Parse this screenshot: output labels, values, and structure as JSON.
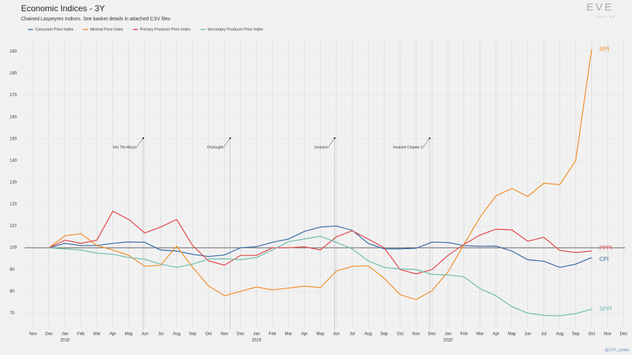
{
  "chart_data": {
    "type": "line",
    "title": "Economic Indices - 3Y",
    "subtitle": "Chained Laspeyres Indices. See basket details in attached CSV files",
    "brand": "EVE",
    "brand_sub": "ONLINE",
    "credit": "@CCP_Larrikin",
    "categories": [
      "Nov",
      "Dec",
      "Jan",
      "Feb",
      "Mar",
      "Apr",
      "May",
      "Jun",
      "Jul",
      "Aug",
      "Sep",
      "Oct",
      "Nov",
      "Dec",
      "Jan",
      "Feb",
      "Mar",
      "Apr",
      "May",
      "Jun",
      "Jul",
      "Aug",
      "Sep",
      "Oct",
      "Nov",
      "Dec",
      "Jan",
      "Feb",
      "Mar",
      "Apr",
      "May",
      "Jun",
      "Jul",
      "Aug",
      "Sep",
      "Oct",
      "Nov",
      "Dec"
    ],
    "year_labels": [
      {
        "index": 2,
        "label": "2018"
      },
      {
        "index": 14,
        "label": "2019"
      },
      {
        "index": 26,
        "label": "2020"
      }
    ],
    "ylim": [
      64,
      195
    ],
    "yticks": [
      70,
      80,
      90,
      100,
      110,
      120,
      130,
      140,
      150,
      160,
      170,
      180,
      190
    ],
    "grid": true,
    "reference_line": 100,
    "legend": "top-left",
    "series": [
      {
        "name": "Consumer Price Index",
        "label": "CPI",
        "color": "#3d6fa6",
        "values": [
          null,
          100,
          102,
          101,
          101,
          102,
          102.7,
          102.5,
          99,
          98.5,
          97,
          96,
          96.7,
          100,
          100.5,
          102.5,
          104,
          107.5,
          109.5,
          110,
          108,
          102,
          99.5,
          99.5,
          99.8,
          102.6,
          102.4,
          101,
          100.7,
          100.8,
          98.5,
          94.5,
          93.8,
          91,
          92.5,
          95.5,
          null,
          null
        ]
      },
      {
        "name": "Mineral Price Index",
        "label": "MPI",
        "color": "#f0922f",
        "values": [
          null,
          100,
          105.5,
          106.5,
          101,
          99,
          96.5,
          91.5,
          92,
          100.8,
          91,
          82.5,
          78,
          80,
          82,
          80.7,
          81.5,
          82.4,
          81.7,
          89.3,
          91.5,
          91.7,
          86,
          78.5,
          76.2,
          80.3,
          89,
          101.5,
          114,
          123.8,
          127.2,
          123.5,
          129.6,
          129,
          140,
          191,
          null,
          null
        ]
      },
      {
        "name": "Primary Producer Price Index",
        "label": "PPPI",
        "color": "#e14a4e",
        "values": [
          null,
          100,
          103.5,
          102,
          103.5,
          116.8,
          113,
          106.8,
          109.5,
          113,
          101,
          94,
          92,
          96.5,
          96.5,
          100,
          100,
          100.5,
          99,
          105,
          107.8,
          104,
          100,
          90,
          88,
          90,
          96.5,
          101.5,
          105.8,
          108.5,
          108.2,
          103,
          104.8,
          98.8,
          97.8,
          98.5,
          null,
          null
        ]
      },
      {
        "name": "Secondary Producer Price Index",
        "label": "SPPI",
        "color": "#72bdb1",
        "values": [
          null,
          100,
          99.5,
          99,
          97.5,
          97,
          95.5,
          94.7,
          92.5,
          91,
          92.5,
          94.8,
          95,
          94.5,
          95.5,
          99,
          102.8,
          104,
          105.3,
          102.5,
          99.5,
          94,
          91,
          90.3,
          90,
          87.8,
          87.5,
          86.7,
          81.3,
          78,
          73,
          70,
          69,
          68.8,
          69.8,
          71.8,
          null,
          null
        ]
      }
    ],
    "annotations": [
      {
        "label": "Into The Abyss",
        "x": 6.9
      },
      {
        "label": "Onslaught",
        "x": 12.35
      },
      {
        "label": "Invasion",
        "x": 18.9
      },
      {
        "label": "Invasion Chapter 2",
        "x": 24.85
      }
    ]
  }
}
